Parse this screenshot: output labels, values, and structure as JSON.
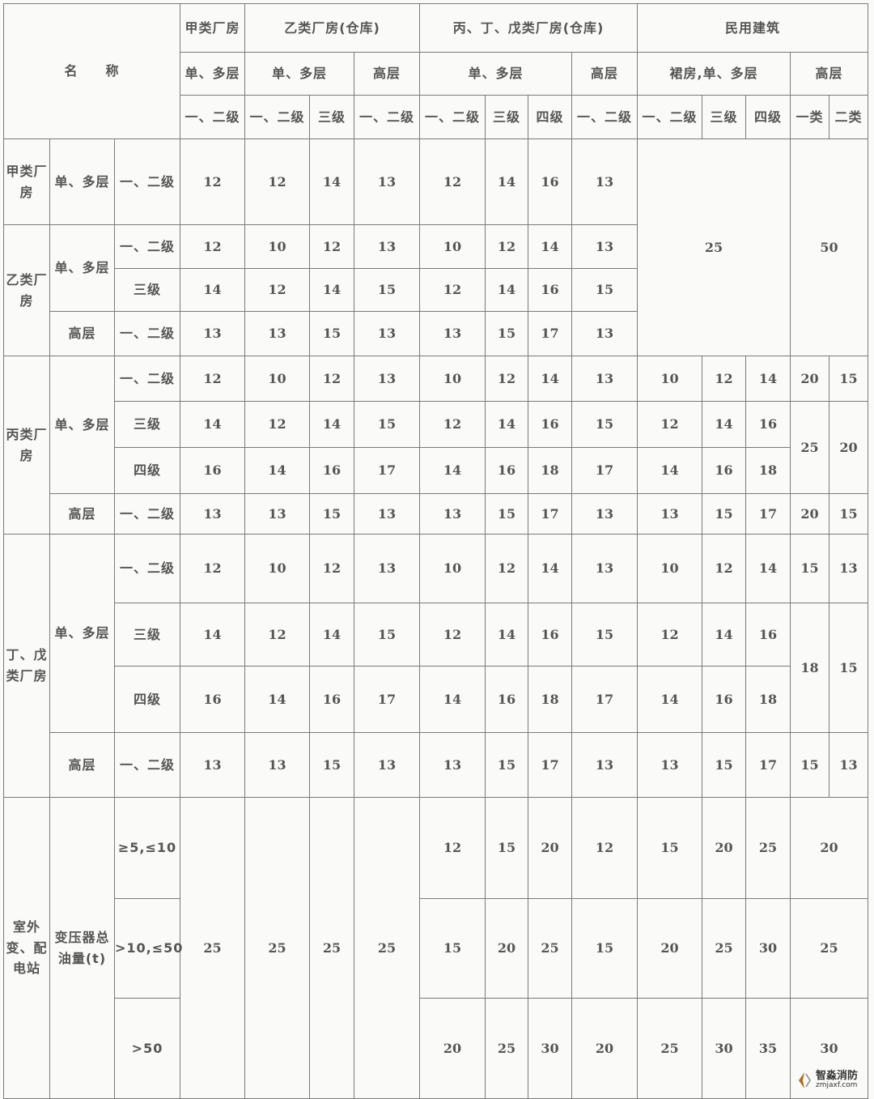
{
  "header": [
    [
      "名　　称",
      "甲类厂房",
      "乙类厂房(仓库)",
      "丙、丁、戊类厂房(仓库)",
      "民用建筑"
    ],
    [
      "单、多层",
      "单、多层",
      "高层",
      "单、多层",
      "高层",
      "裙房,单、多层",
      "高层"
    ],
    [
      "一、二级",
      "一、二级",
      "三级",
      "一、二级",
      "一、二级",
      "三级",
      "四级",
      "一、二级",
      "一、二级",
      "三级",
      "四级",
      "一类",
      "二类"
    ]
  ],
  "body": [
    [
      "甲类厂房",
      "单、多层",
      "一、二级",
      "12",
      "12",
      "14",
      "13",
      "12",
      "14",
      "16",
      "13",
      "25",
      "50"
    ],
    [
      "乙类厂房",
      "单、多层",
      "一、二级",
      "12",
      "10",
      "12",
      "13",
      "10",
      "12",
      "14",
      "13"
    ],
    [
      "三级",
      "14",
      "12",
      "14",
      "15",
      "12",
      "14",
      "16",
      "15"
    ],
    [
      "高层",
      "一、二级",
      "13",
      "13",
      "15",
      "13",
      "13",
      "15",
      "17",
      "13"
    ],
    [
      "丙类厂房",
      "单、多层",
      "一、二级",
      "12",
      "10",
      "12",
      "13",
      "10",
      "12",
      "14",
      "13",
      "10",
      "12",
      "14",
      "20",
      "15"
    ],
    [
      "三级",
      "14",
      "12",
      "14",
      "15",
      "12",
      "14",
      "16",
      "15",
      "12",
      "14",
      "16",
      "25",
      "20"
    ],
    [
      "四级",
      "16",
      "14",
      "16",
      "17",
      "14",
      "16",
      "18",
      "17",
      "14",
      "16",
      "18"
    ],
    [
      "高层",
      "一、二级",
      "13",
      "13",
      "15",
      "13",
      "13",
      "15",
      "17",
      "13",
      "13",
      "15",
      "17",
      "20",
      "15"
    ],
    [
      "丁、戊类厂房",
      "单、多层",
      "一、二级",
      "12",
      "10",
      "12",
      "13",
      "10",
      "12",
      "14",
      "13",
      "10",
      "12",
      "14",
      "15",
      "13"
    ],
    [
      "三级",
      "14",
      "12",
      "14",
      "15",
      "12",
      "14",
      "16",
      "15",
      "12",
      "14",
      "16",
      "18",
      "15"
    ],
    [
      "四级",
      "16",
      "14",
      "16",
      "17",
      "14",
      "16",
      "18",
      "17",
      "14",
      "16",
      "18"
    ],
    [
      "高层",
      "一、二级",
      "13",
      "13",
      "15",
      "13",
      "13",
      "15",
      "17",
      "13",
      "13",
      "15",
      "17",
      "15",
      "13"
    ],
    [
      "室外变、配电站",
      "变压器总油量(t)",
      "≥5,≤10",
      "25",
      "25",
      "25",
      "25",
      "12",
      "15",
      "20",
      "12",
      "15",
      "20",
      "25",
      "20"
    ],
    [
      ">10,≤50",
      "15",
      "20",
      "25",
      "15",
      "20",
      "25",
      "30",
      "25"
    ],
    [
      ">50",
      "20",
      "25",
      "30",
      "20",
      "25",
      "30",
      "35",
      "30"
    ]
  ],
  "watermark": {
    "name": "智淼消防",
    "site": "zmjaxf.com"
  }
}
